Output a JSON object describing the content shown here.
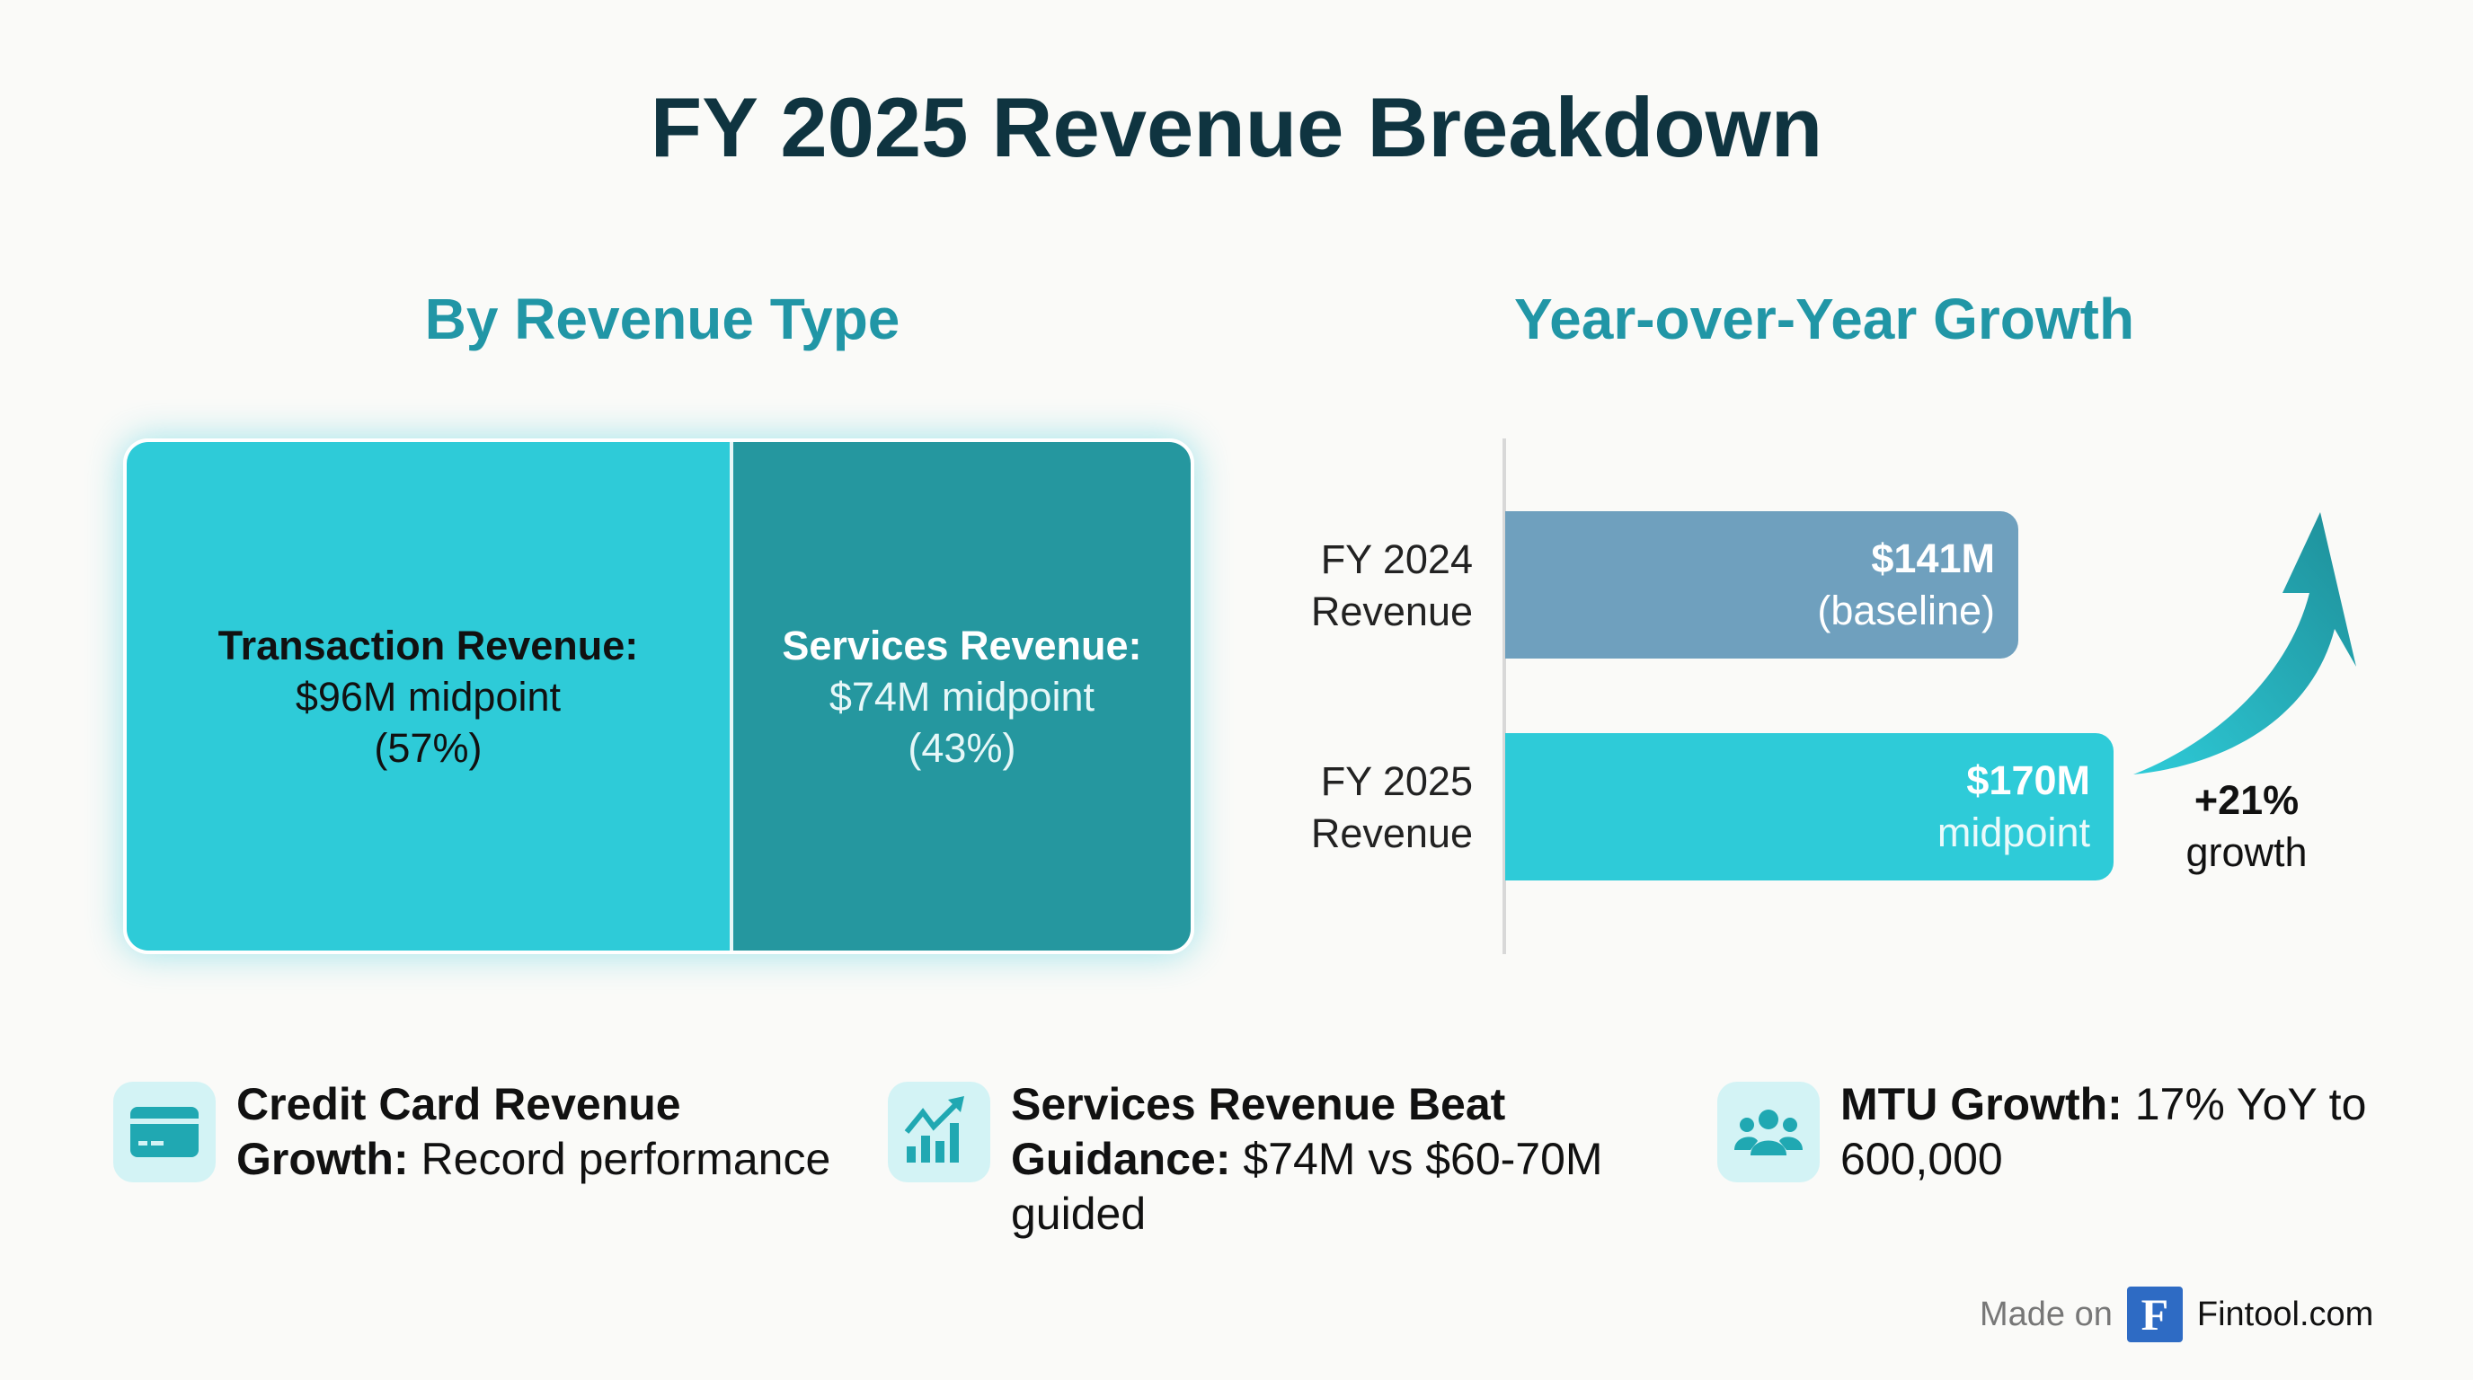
{
  "title": "FY 2025 Revenue Breakdown",
  "left": {
    "subtitle": "By Revenue Type",
    "segments": [
      {
        "name": "Transaction Revenue:",
        "value": "$96M midpoint",
        "pct": "(57%)",
        "share": 57,
        "color": "#2ecbd8"
      },
      {
        "name": "Services Revenue:",
        "value": "$74M midpoint",
        "pct": "(43%)",
        "share": 43,
        "color": "#25979f"
      }
    ]
  },
  "right": {
    "subtitle": "Year-over-Year Growth",
    "bars": [
      {
        "label1": "FY 2024",
        "label2": "Revenue",
        "value": "$141M",
        "note": "(baseline)",
        "amount": 141,
        "color": "#6fa0be"
      },
      {
        "label1": "FY 2025",
        "label2": "Revenue",
        "value": "$170M",
        "note": "midpoint",
        "amount": 170,
        "color": "#2ecbd8"
      }
    ],
    "growth": {
      "pct": "+21%",
      "label": "growth"
    }
  },
  "cards": [
    {
      "icon": "credit-card-icon",
      "bold": "Credit Card Revenue Growth:",
      "text": " Record performance"
    },
    {
      "icon": "chart-growth-icon",
      "bold": "Services Revenue Beat Guidance:",
      "text": " $74M vs $60-70M guided"
    },
    {
      "icon": "users-icon",
      "bold": "MTU Growth:",
      "text": " 17% YoY to 600,000"
    }
  ],
  "footer": {
    "made_on": "Made on",
    "logo_letter": "F",
    "brand": "Fintool.com"
  }
}
